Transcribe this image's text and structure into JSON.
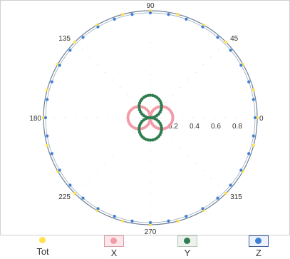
{
  "chart_data": {
    "type": "scatter",
    "subtype": "polar-radiation-pattern",
    "title": "",
    "angle_ticks": [
      "90",
      "45",
      "0",
      "315",
      "270",
      "225",
      "180",
      "135"
    ],
    "radius_ticks": [
      "0.2",
      "0.4",
      "0.6",
      "0.8"
    ],
    "radius_range": [
      0,
      1
    ],
    "angle_unit": "degrees",
    "grid": false,
    "legend_position": "bottom",
    "series": [
      {
        "name": "Tot",
        "color": "#ffe14d",
        "shape": "circle",
        "r": 1.0,
        "step_deg": 15
      },
      {
        "name": "X",
        "color": "#f29aa8",
        "shape": "two-lobe-horizontal",
        "lobe_peak": 0.21,
        "step_deg": 6
      },
      {
        "name": "Y",
        "color": "#2e7d4f",
        "shape": "two-lobe-vertical",
        "lobe_peak": 0.21,
        "step_deg": 6
      },
      {
        "name": "Z",
        "color": "#3f7fd6",
        "shape": "circle",
        "r": 0.98,
        "step_deg": 10
      }
    ]
  },
  "legend": {
    "items": [
      {
        "label": "Tot",
        "color": "#ffe14d",
        "boxed": false
      },
      {
        "label": "X",
        "color": "#f29aa8",
        "boxed": true
      },
      {
        "label": "Y",
        "color": "#2e7d4f",
        "boxed": true
      },
      {
        "label": "Z",
        "color": "#3f7fd6",
        "boxed": true
      }
    ]
  }
}
